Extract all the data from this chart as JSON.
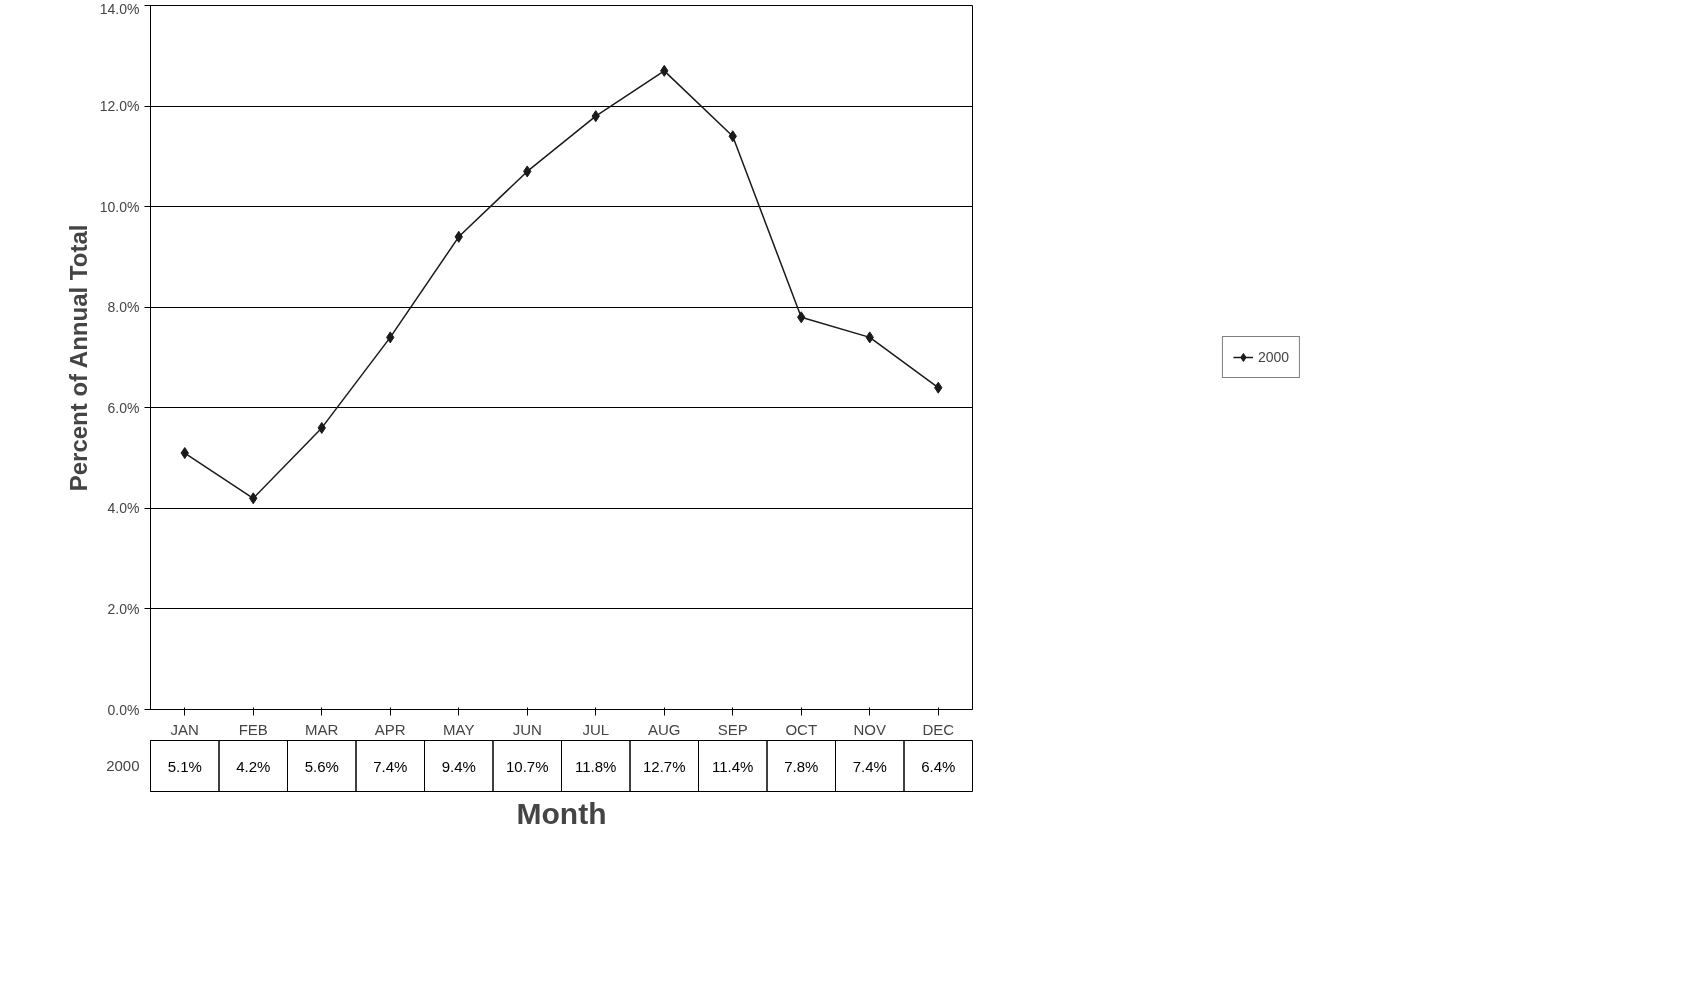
{
  "chart_data": {
    "type": "line",
    "xlabel": "Month",
    "ylabel": "Percent of Annual Total",
    "categories": [
      "JAN",
      "FEB",
      "MAR",
      "APR",
      "MAY",
      "JUN",
      "JUL",
      "AUG",
      "SEP",
      "OCT",
      "NOV",
      "DEC"
    ],
    "series": [
      {
        "name": "2000",
        "color": "#1a1a1a",
        "values": [
          5.1,
          4.2,
          5.6,
          7.4,
          9.4,
          10.7,
          11.8,
          12.7,
          11.4,
          7.8,
          7.4,
          6.4
        ],
        "value_labels": [
          "5.1%",
          "4.2%",
          "5.6%",
          "7.4%",
          "9.4%",
          "10.7%",
          "11.8%",
          "12.7%",
          "11.4%",
          "7.8%",
          "7.4%",
          "6.4%"
        ]
      }
    ],
    "ylim": [
      0,
      14
    ],
    "yticks": [
      {
        "value": 0,
        "label": "0.0%"
      },
      {
        "value": 2,
        "label": "2.0%"
      },
      {
        "value": 4,
        "label": "4.0%"
      },
      {
        "value": 6,
        "label": "6.0%"
      },
      {
        "value": 8,
        "label": "8.0%"
      },
      {
        "value": 10,
        "label": "10.0%"
      },
      {
        "value": 12,
        "label": "12.0%"
      },
      {
        "value": 14,
        "label": "14.0%"
      }
    ],
    "grid": "y",
    "legend": "right",
    "marker": "diamond",
    "line_style": "solid"
  }
}
